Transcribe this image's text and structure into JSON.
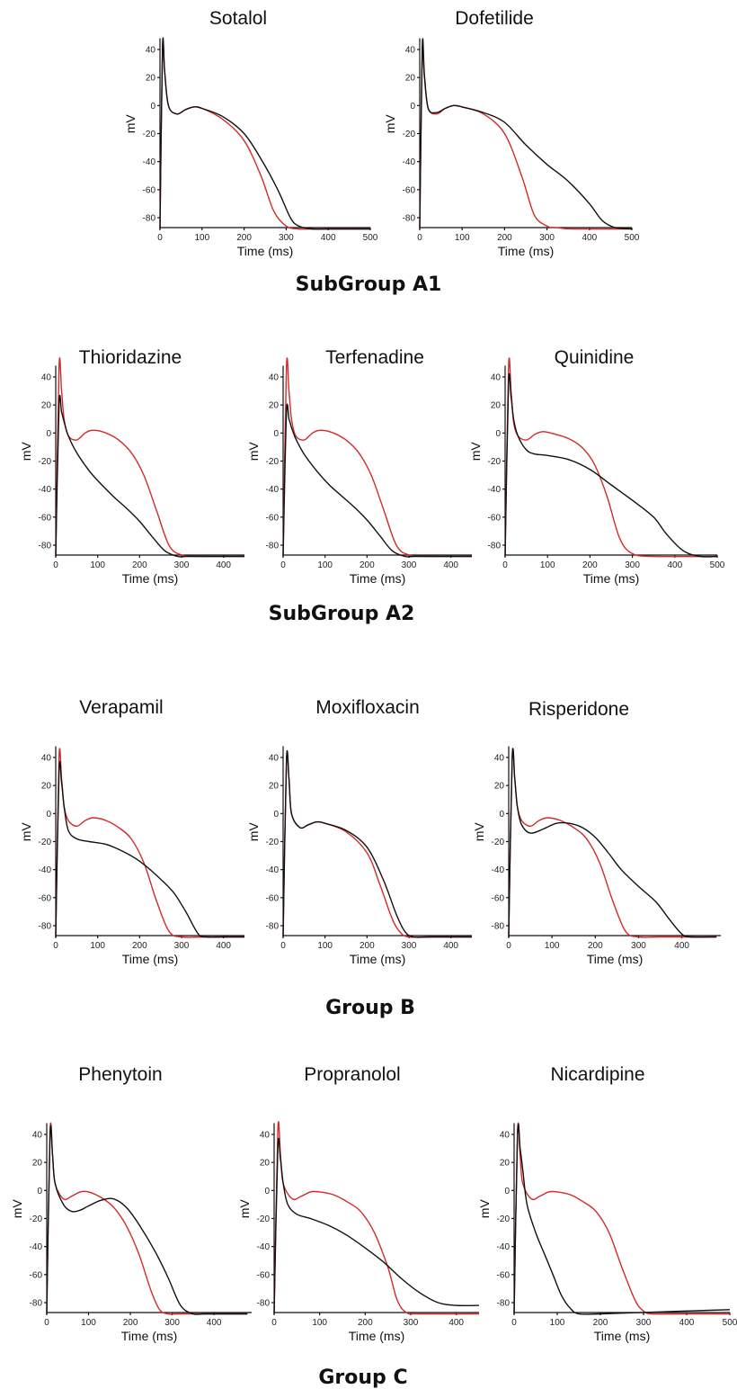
{
  "chart_data": [
    {
      "type": "line",
      "title": "Sotalol",
      "xlabel": "Time (ms)",
      "ylabel": "mV",
      "xlim": [
        0,
        500
      ],
      "ylim": [
        -90,
        48
      ],
      "xticks": [
        0,
        100,
        200,
        300,
        400,
        500
      ],
      "yticks": [
        40,
        20,
        0,
        -20,
        -40,
        -60,
        -80
      ],
      "series": [
        {
          "color": "#d42a2a",
          "x": [
            0,
            6,
            11,
            20,
            40,
            60,
            80,
            100,
            150,
            200,
            240,
            270,
            300,
            330,
            360,
            400,
            500
          ],
          "y": [
            -88,
            40,
            25,
            0,
            -6,
            -3,
            -1,
            -2,
            -10,
            -25,
            -50,
            -75,
            -86,
            -88,
            -88,
            -88,
            -88
          ]
        },
        {
          "color": "#111111",
          "x": [
            0,
            6,
            11,
            20,
            40,
            60,
            80,
            100,
            150,
            200,
            240,
            280,
            310,
            330,
            360,
            400,
            500
          ],
          "y": [
            -88,
            42,
            25,
            0,
            -6,
            -3,
            -1,
            -2,
            -8,
            -20,
            -38,
            -60,
            -80,
            -86,
            -88,
            -88,
            -88
          ]
        }
      ]
    },
    {
      "type": "line",
      "title": "Dofetilide",
      "xlabel": "Time (ms)",
      "ylabel": "mV",
      "xlim": [
        0,
        500
      ],
      "ylim": [
        -90,
        48
      ],
      "xticks": [
        0,
        100,
        200,
        300,
        400,
        500
      ],
      "yticks": [
        40,
        20,
        0,
        -20,
        -40,
        -60,
        -80
      ],
      "series": [
        {
          "color": "#d42a2a",
          "x": [
            0,
            6,
            11,
            20,
            40,
            60,
            80,
            100,
            150,
            200,
            240,
            270,
            300,
            320,
            360,
            500
          ],
          "y": [
            -88,
            38,
            20,
            -2,
            -6,
            -2,
            0,
            -1,
            -6,
            -20,
            -50,
            -78,
            -86,
            -87,
            -88,
            -88
          ]
        },
        {
          "color": "#111111",
          "x": [
            0,
            6,
            11,
            20,
            40,
            60,
            80,
            100,
            150,
            200,
            250,
            300,
            350,
            400,
            430,
            460,
            500
          ],
          "y": [
            -88,
            42,
            22,
            -2,
            -5,
            -2,
            0,
            -1,
            -5,
            -12,
            -28,
            -42,
            -54,
            -70,
            -82,
            -87,
            -88
          ]
        }
      ]
    },
    {
      "type": "line",
      "title": "Thioridazine",
      "xlabel": "Time (ms)",
      "ylabel": "mV",
      "xlim": [
        0,
        450
      ],
      "ylim": [
        -90,
        48
      ],
      "xticks": [
        0,
        100,
        200,
        300,
        400
      ],
      "yticks": [
        40,
        20,
        0,
        -20,
        -40,
        -60,
        -80
      ],
      "series": [
        {
          "color": "#d42a2a",
          "x": [
            0,
            8,
            14,
            20,
            30,
            50,
            70,
            90,
            120,
            150,
            180,
            210,
            240,
            270,
            300,
            350,
            450
          ],
          "y": [
            -88,
            47,
            30,
            10,
            -2,
            -5,
            0,
            2,
            0,
            -5,
            -14,
            -30,
            -55,
            -80,
            -87,
            -88,
            -88
          ]
        },
        {
          "color": "#111111",
          "x": [
            0,
            8,
            14,
            20,
            30,
            50,
            80,
            110,
            140,
            170,
            200,
            230,
            260,
            290,
            310,
            350,
            450
          ],
          "y": [
            -88,
            20,
            15,
            8,
            -2,
            -14,
            -27,
            -37,
            -46,
            -54,
            -63,
            -74,
            -84,
            -88,
            -88,
            -88,
            -88
          ]
        }
      ]
    },
    {
      "type": "line",
      "title": "Terfenadine",
      "xlabel": "Time (ms)",
      "ylabel": "mV",
      "xlim": [
        0,
        450
      ],
      "ylim": [
        -90,
        48
      ],
      "xticks": [
        0,
        100,
        200,
        300,
        400
      ],
      "yticks": [
        40,
        20,
        0,
        -20,
        -40,
        -60,
        -80
      ],
      "series": [
        {
          "color": "#d42a2a",
          "x": [
            0,
            8,
            14,
            20,
            30,
            50,
            70,
            90,
            120,
            150,
            180,
            210,
            240,
            270,
            300,
            350,
            450
          ],
          "y": [
            -88,
            47,
            30,
            10,
            -2,
            -5,
            0,
            2,
            0,
            -5,
            -14,
            -30,
            -55,
            -80,
            -87,
            -88,
            -88
          ]
        },
        {
          "color": "#111111",
          "x": [
            0,
            8,
            14,
            20,
            30,
            50,
            80,
            110,
            140,
            170,
            200,
            230,
            260,
            290,
            310,
            350,
            450
          ],
          "y": [
            -88,
            14,
            10,
            4,
            -4,
            -15,
            -27,
            -37,
            -45,
            -53,
            -62,
            -73,
            -84,
            -88,
            -88,
            -88,
            -88
          ]
        }
      ]
    },
    {
      "type": "line",
      "title": "Quinidine",
      "xlabel": "Time (ms)",
      "ylabel": "mV",
      "xlim": [
        0,
        500
      ],
      "ylim": [
        -90,
        48
      ],
      "xticks": [
        0,
        100,
        200,
        300,
        400,
        500
      ],
      "yticks": [
        40,
        20,
        0,
        -20,
        -40,
        -60,
        -80
      ],
      "series": [
        {
          "color": "#d42a2a",
          "x": [
            0,
            8,
            14,
            20,
            30,
            50,
            70,
            90,
            120,
            150,
            180,
            210,
            240,
            270,
            300,
            350,
            500
          ],
          "y": [
            -88,
            47,
            30,
            8,
            -2,
            -5,
            -1,
            1,
            -1,
            -4,
            -10,
            -22,
            -45,
            -75,
            -86,
            -88,
            -88
          ]
        },
        {
          "color": "#111111",
          "x": [
            0,
            8,
            14,
            20,
            30,
            50,
            70,
            100,
            150,
            200,
            250,
            300,
            350,
            380,
            420,
            460,
            500
          ],
          "y": [
            -88,
            35,
            26,
            10,
            -2,
            -12,
            -15,
            -16,
            -19,
            -26,
            -37,
            -48,
            -60,
            -72,
            -84,
            -88,
            -88
          ]
        }
      ]
    },
    {
      "type": "line",
      "title": "Verapamil",
      "xlabel": "Time (ms)",
      "ylabel": "mV",
      "xlim": [
        0,
        450
      ],
      "ylim": [
        -90,
        48
      ],
      "xticks": [
        0,
        100,
        200,
        300,
        400
      ],
      "yticks": [
        40,
        20,
        0,
        -20,
        -40,
        -60,
        -80
      ],
      "series": [
        {
          "color": "#d42a2a",
          "x": [
            0,
            8,
            14,
            20,
            30,
            50,
            70,
            90,
            120,
            150,
            180,
            210,
            240,
            270,
            300,
            350,
            450
          ],
          "y": [
            -88,
            40,
            25,
            5,
            -5,
            -9,
            -5,
            -3,
            -5,
            -10,
            -18,
            -35,
            -62,
            -84,
            -88,
            -88,
            -88
          ]
        },
        {
          "color": "#111111",
          "x": [
            0,
            8,
            14,
            20,
            30,
            50,
            80,
            120,
            160,
            200,
            240,
            280,
            310,
            340,
            360,
            400,
            450
          ],
          "y": [
            -88,
            30,
            22,
            5,
            -12,
            -18,
            -20,
            -22,
            -27,
            -34,
            -44,
            -56,
            -70,
            -86,
            -88,
            -88,
            -88
          ]
        }
      ]
    },
    {
      "type": "line",
      "title": "Moxifloxacin",
      "xlabel": "Time (ms)",
      "ylabel": "mV",
      "xlim": [
        0,
        450
      ],
      "ylim": [
        -90,
        48
      ],
      "xticks": [
        0,
        100,
        200,
        300,
        400
      ],
      "yticks": [
        40,
        20,
        0,
        -20,
        -40,
        -60,
        -80
      ],
      "series": [
        {
          "color": "#d42a2a",
          "x": [
            0,
            8,
            14,
            20,
            40,
            60,
            80,
            100,
            150,
            200,
            230,
            260,
            280,
            300,
            350,
            450
          ],
          "y": [
            -88,
            36,
            25,
            0,
            -10,
            -8,
            -6,
            -7,
            -13,
            -28,
            -50,
            -75,
            -85,
            -88,
            -88,
            -88
          ]
        },
        {
          "color": "#111111",
          "x": [
            0,
            8,
            14,
            20,
            40,
            60,
            80,
            100,
            150,
            200,
            240,
            270,
            290,
            310,
            350,
            450
          ],
          "y": [
            -88,
            38,
            25,
            0,
            -10,
            -8,
            -6,
            -7,
            -12,
            -24,
            -48,
            -72,
            -84,
            -88,
            -88,
            -88
          ]
        }
      ]
    },
    {
      "type": "line",
      "title": "Risperidone",
      "xlabel": "Time (ms)",
      "ylabel": "mV",
      "xlim": [
        0,
        490
      ],
      "ylim": [
        -90,
        48
      ],
      "xticks": [
        0,
        100,
        200,
        300,
        400
      ],
      "yticks": [
        40,
        20,
        0,
        -20,
        -40,
        -60,
        -80
      ],
      "series": [
        {
          "color": "#d42a2a",
          "x": [
            0,
            8,
            14,
            20,
            30,
            50,
            70,
            90,
            120,
            150,
            180,
            210,
            240,
            270,
            300,
            350,
            480
          ],
          "y": [
            -88,
            40,
            25,
            5,
            -5,
            -9,
            -5,
            -3,
            -5,
            -10,
            -18,
            -35,
            -62,
            -84,
            -88,
            -88,
            -88
          ]
        },
        {
          "color": "#111111",
          "x": [
            0,
            8,
            14,
            20,
            30,
            50,
            80,
            110,
            140,
            170,
            200,
            230,
            260,
            300,
            340,
            370,
            400,
            420,
            480
          ],
          "y": [
            -88,
            40,
            25,
            5,
            -8,
            -14,
            -11,
            -7,
            -7,
            -10,
            -17,
            -28,
            -40,
            -52,
            -63,
            -75,
            -86,
            -88,
            -88
          ]
        }
      ]
    },
    {
      "type": "line",
      "title": "Phenytoin",
      "xlabel": "Time (ms)",
      "ylabel": "mV",
      "xlim": [
        0,
        490
      ],
      "ylim": [
        -90,
        48
      ],
      "xticks": [
        0,
        100,
        200,
        300,
        400
      ],
      "yticks": [
        40,
        20,
        0,
        -20,
        -40,
        -60,
        -80
      ],
      "series": [
        {
          "color": "#d42a2a",
          "x": [
            0,
            8,
            14,
            20,
            40,
            60,
            80,
            100,
            130,
            160,
            190,
            220,
            250,
            270,
            290,
            320,
            480
          ],
          "y": [
            -88,
            42,
            25,
            5,
            -6,
            -4,
            -1,
            -1,
            -5,
            -12,
            -25,
            -45,
            -72,
            -85,
            -88,
            -88,
            -88
          ]
        },
        {
          "color": "#111111",
          "x": [
            0,
            8,
            14,
            20,
            40,
            60,
            80,
            100,
            130,
            160,
            190,
            220,
            260,
            290,
            320,
            350,
            380,
            480
          ],
          "y": [
            -88,
            40,
            25,
            5,
            -10,
            -15,
            -14,
            -11,
            -7,
            -6,
            -12,
            -24,
            -44,
            -62,
            -82,
            -88,
            -88,
            -88
          ]
        }
      ]
    },
    {
      "type": "line",
      "title": "Propranolol",
      "xlabel": "Time (ms)",
      "ylabel": "mV",
      "xlim": [
        0,
        450
      ],
      "ylim": [
        -90,
        48
      ],
      "xticks": [
        0,
        100,
        200,
        300,
        400
      ],
      "yticks": [
        40,
        20,
        0,
        -20,
        -40,
        -60,
        -80
      ],
      "series": [
        {
          "color": "#d42a2a",
          "x": [
            0,
            8,
            14,
            20,
            40,
            60,
            80,
            100,
            130,
            160,
            190,
            220,
            250,
            270,
            290,
            320,
            450
          ],
          "y": [
            -88,
            43,
            25,
            5,
            -6,
            -4,
            -1,
            -1,
            -3,
            -8,
            -15,
            -30,
            -55,
            -78,
            -87,
            -88,
            -88
          ]
        },
        {
          "color": "#111111",
          "x": [
            0,
            8,
            14,
            20,
            30,
            50,
            80,
            120,
            160,
            200,
            240,
            280,
            320,
            360,
            400,
            450
          ],
          "y": [
            -88,
            30,
            22,
            5,
            -10,
            -17,
            -20,
            -25,
            -32,
            -41,
            -51,
            -63,
            -73,
            -80,
            -82,
            -82
          ]
        }
      ]
    },
    {
      "type": "line",
      "title": "Nicardipine",
      "xlabel": "Time (ms)",
      "ylabel": "mV",
      "xlim": [
        0,
        500
      ],
      "ylim": [
        -90,
        48
      ],
      "xticks": [
        0,
        100,
        200,
        300,
        400,
        500
      ],
      "yticks": [
        40,
        20,
        0,
        -20,
        -40,
        -60,
        -80
      ],
      "series": [
        {
          "color": "#d42a2a",
          "x": [
            0,
            8,
            14,
            20,
            40,
            60,
            80,
            100,
            130,
            160,
            190,
            220,
            250,
            280,
            300,
            320,
            400,
            500
          ],
          "y": [
            -88,
            42,
            25,
            5,
            -6,
            -4,
            -1,
            -1,
            -3,
            -8,
            -15,
            -30,
            -55,
            -78,
            -86,
            -88,
            -88,
            -88
          ]
        },
        {
          "color": "#111111",
          "x": [
            0,
            8,
            14,
            20,
            30,
            50,
            70,
            90,
            110,
            130,
            150,
            200,
            300,
            400,
            500
          ],
          "y": [
            -88,
            40,
            30,
            15,
            -10,
            -30,
            -45,
            -60,
            -75,
            -84,
            -88,
            -88,
            -87,
            -86,
            -85
          ]
        }
      ]
    }
  ],
  "group_labels": {
    "a1": "SubGroup A1",
    "a2": "SubGroup A2",
    "b": "Group B",
    "c": "Group C"
  }
}
